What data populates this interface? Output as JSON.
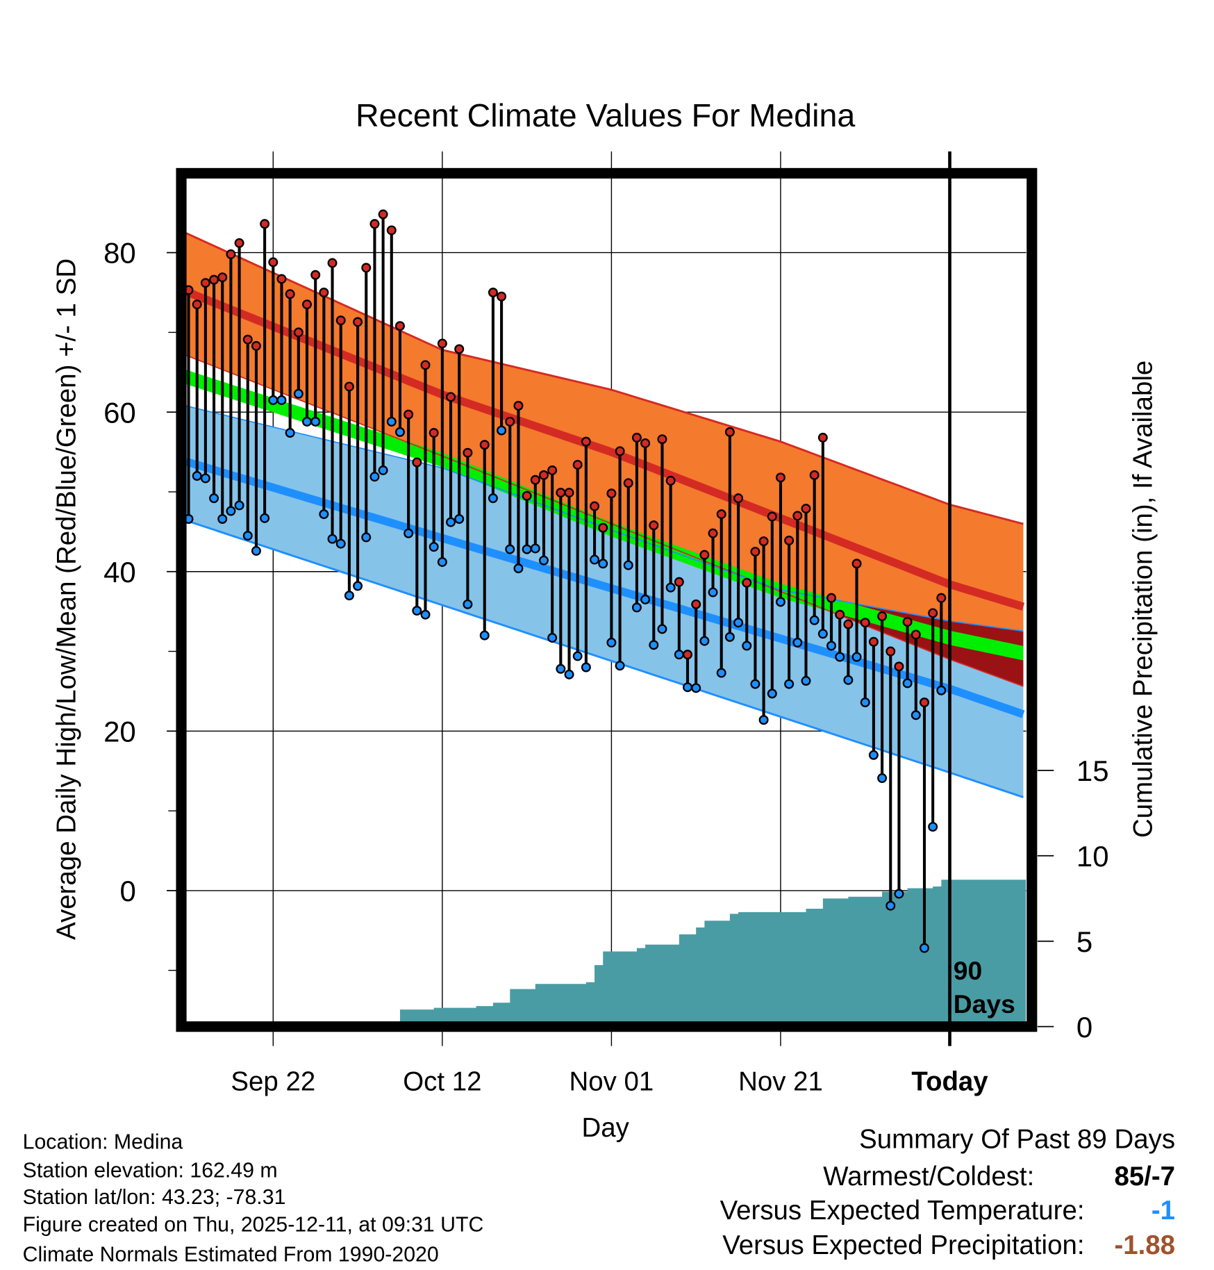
{
  "chart_data": {
    "type": "line",
    "title": "Recent Climate Values For Medina",
    "xlabel": "Day",
    "ylabel": "Average Daily High/Low/Mean (Red/Blue/Green) +/- 1 SD",
    "y2label": "Cumulative Precipitation (in), If Available",
    "ylim": [
      -16.4,
      89.3
    ],
    "y2lim": [
      0,
      17
    ],
    "yticks": [
      0,
      20,
      40,
      60,
      80
    ],
    "y2ticks": [
      0,
      5,
      10,
      15
    ],
    "x_ticks": [
      {
        "day": 10,
        "label": "Sep 22"
      },
      {
        "day": 30,
        "label": "Oct 12"
      },
      {
        "day": 50,
        "label": "Nov 01"
      },
      {
        "day": 70,
        "label": "Nov 21"
      },
      {
        "day": 90,
        "label": "Today"
      }
    ],
    "xlim_days": [
      -0.3,
      99
    ],
    "grid": true,
    "today_annotation": [
      "90",
      "Days"
    ],
    "observed": {
      "highs": [
        75.3,
        73.5,
        76.2,
        76.6,
        76.9,
        79.8,
        81.2,
        69.1,
        68.3,
        83.6,
        78.8,
        76.7,
        74.8,
        70.0,
        73.5,
        77.2,
        75.0,
        78.7,
        71.5,
        63.2,
        71.3,
        78.1,
        83.6,
        84.8,
        82.8,
        70.8,
        59.7,
        53.7,
        65.9,
        57.4,
        68.6,
        61.9,
        67.9,
        54.9,
        null,
        55.9,
        75.0,
        74.5,
        58.8,
        60.8,
        49.5,
        51.5,
        52.1,
        52.7,
        49.9,
        49.9,
        53.4,
        56.3,
        48.2,
        45.5,
        49.8,
        55.1,
        51.1,
        56.8,
        56.1,
        45.8,
        56.6,
        51.4,
        38.7,
        29.6,
        35.9,
        42.1,
        44.8,
        47.2,
        57.5,
        49.2,
        38.6,
        42.5,
        43.8,
        46.9,
        51.8,
        43.9,
        47.0,
        47.9,
        52.1,
        56.8,
        36.7,
        34.6,
        33.4,
        41.0,
        33.6,
        31.2,
        34.4,
        30.0,
        28.1,
        33.7,
        32.1,
        23.6,
        34.8,
        36.7
      ],
      "lows": [
        46.6,
        52.0,
        51.7,
        49.2,
        46.6,
        47.6,
        48.3,
        44.5,
        42.6,
        46.7,
        61.5,
        61.5,
        57.4,
        62.3,
        58.8,
        58.8,
        47.2,
        44.1,
        43.5,
        37.0,
        38.2,
        44.3,
        51.9,
        52.7,
        58.8,
        57.5,
        44.8,
        35.1,
        34.6,
        43.1,
        41.2,
        46.2,
        46.6,
        35.9,
        null,
        32.0,
        49.2,
        57.7,
        42.8,
        40.4,
        42.8,
        42.9,
        41.4,
        31.7,
        27.8,
        27.1,
        29.4,
        28.0,
        41.5,
        41.0,
        31.1,
        28.2,
        40.8,
        35.5,
        36.5,
        30.8,
        32.8,
        38.0,
        29.6,
        25.5,
        25.4,
        31.3,
        37.4,
        27.3,
        31.8,
        33.6,
        30.7,
        25.9,
        21.4,
        24.7,
        36.2,
        25.9,
        31.1,
        26.3,
        33.9,
        32.2,
        30.7,
        29.3,
        26.4,
        29.3,
        23.6,
        17.0,
        14.1,
        -1.9,
        -0.4,
        26.0,
        22.0,
        -7.2,
        8.0,
        25.1
      ]
    },
    "normals": {
      "days": [
        0,
        30,
        50,
        70,
        90,
        99
      ],
      "high_plus_sd": [
        82.3,
        67.8,
        62.8,
        56.3,
        48.4,
        45.9
      ],
      "high_mean": [
        75.0,
        62.2,
        55.0,
        46.7,
        38.4,
        35.5
      ],
      "high_minus_sd": [
        67.0,
        54.5,
        46.0,
        37.5,
        29.0,
        25.5
      ],
      "mean": [
        64.3,
        54.0,
        45.3,
        37.6,
        31.7,
        29.7
      ],
      "low_plus_sd": [
        60.7,
        53.0,
        45.2,
        37.7,
        33.8,
        32.5
      ],
      "low_mean": [
        53.7,
        44.2,
        37.9,
        31.6,
        25.3,
        22.0
      ],
      "low_minus_sd": [
        46.3,
        35.8,
        28.8,
        21.8,
        14.8,
        11.6
      ]
    },
    "cumulative_precip": [
      [
        24,
        0
      ],
      [
        25,
        1.0
      ],
      [
        29,
        1.1
      ],
      [
        34,
        1.2
      ],
      [
        36,
        1.4
      ],
      [
        38,
        2.2
      ],
      [
        41,
        2.5
      ],
      [
        47,
        2.6
      ],
      [
        48,
        3.6
      ],
      [
        49,
        4.4
      ],
      [
        51,
        4.4
      ],
      [
        53,
        4.6
      ],
      [
        54,
        4.8
      ],
      [
        57,
        4.8
      ],
      [
        58,
        5.4
      ],
      [
        60,
        5.8
      ],
      [
        61,
        6.2
      ],
      [
        63,
        6.2
      ],
      [
        64,
        6.6
      ],
      [
        65,
        6.7
      ],
      [
        72,
        6.7
      ],
      [
        73,
        6.9
      ],
      [
        75,
        7.5
      ],
      [
        78,
        7.6
      ],
      [
        82,
        7.9
      ],
      [
        85,
        8.1
      ],
      [
        88,
        8.2
      ],
      [
        89,
        8.6
      ],
      [
        99,
        8.6
      ]
    ],
    "colors": {
      "high_band": "#f47a2e",
      "high_line": "#d42a24",
      "overlap": "#9a1214",
      "mean_band": "#00ee00",
      "low_band": "#86c3e9",
      "low_line": "#1e8fff",
      "precip": "#4a9ca4",
      "high_point": "#d42a24",
      "low_point": "#1e8fff"
    }
  },
  "footer": {
    "location": "Location: Medina",
    "elevation": "Station elevation: 162.49 m",
    "latlon": "Station lat/lon: 43.23; -78.31",
    "created": "Figure created on Thu, 2025-12-11, at 09:31 UTC",
    "normals": "Climate Normals Estimated From 1990-2020"
  },
  "summary": {
    "title": "Summary Of Past 89 Days",
    "warmest_label": "Warmest/Coldest:",
    "warmest_value": "85/-7",
    "temp_label": "Versus Expected Temperature:",
    "temp_value": "-1",
    "temp_color": "#1e8fff",
    "precip_label": "Versus Expected Precipitation:",
    "precip_value": "-1.88",
    "precip_color": "#a0522d"
  }
}
